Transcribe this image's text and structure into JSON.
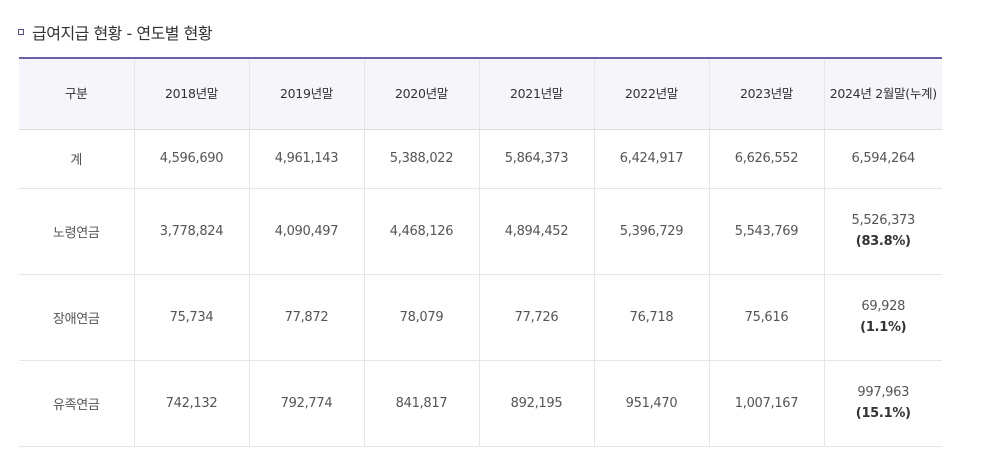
{
  "page": {
    "title": "급여지급 현황 - 연도별 현황"
  },
  "table": {
    "headers": [
      "구분",
      "2018년말",
      "2019년말",
      "2020년말",
      "2021년말",
      "2022년말",
      "2023년말",
      "2024년 2월말(누계)"
    ],
    "rows": [
      {
        "label": "계",
        "values": [
          "4,596,690",
          "4,961,143",
          "5,388,022",
          "5,864,373",
          "6,424,917",
          "6,626,552",
          "6,594,264"
        ],
        "last_pct": ""
      },
      {
        "label": "노령연금",
        "values": [
          "3,778,824",
          "4,090,497",
          "4,468,126",
          "4,894,452",
          "5,396,729",
          "5,543,769",
          "5,526,373"
        ],
        "last_pct": "(83.8%)"
      },
      {
        "label": "장애연금",
        "values": [
          "75,734",
          "77,872",
          "78,079",
          "77,726",
          "76,718",
          "75,616",
          "69,928"
        ],
        "last_pct": "(1.1%)"
      },
      {
        "label": "유족연금",
        "values": [
          "742,132",
          "792,774",
          "841,817",
          "892,195",
          "951,470",
          "1,007,167",
          "997,963"
        ],
        "last_pct": "(15.1%)"
      }
    ]
  },
  "colors": {
    "header_border": "#6d5fa8",
    "header_bg": "#f6f5f9",
    "bullet": "#5a4a86"
  },
  "icons": {
    "title_bullet": "square-bullet-icon"
  }
}
